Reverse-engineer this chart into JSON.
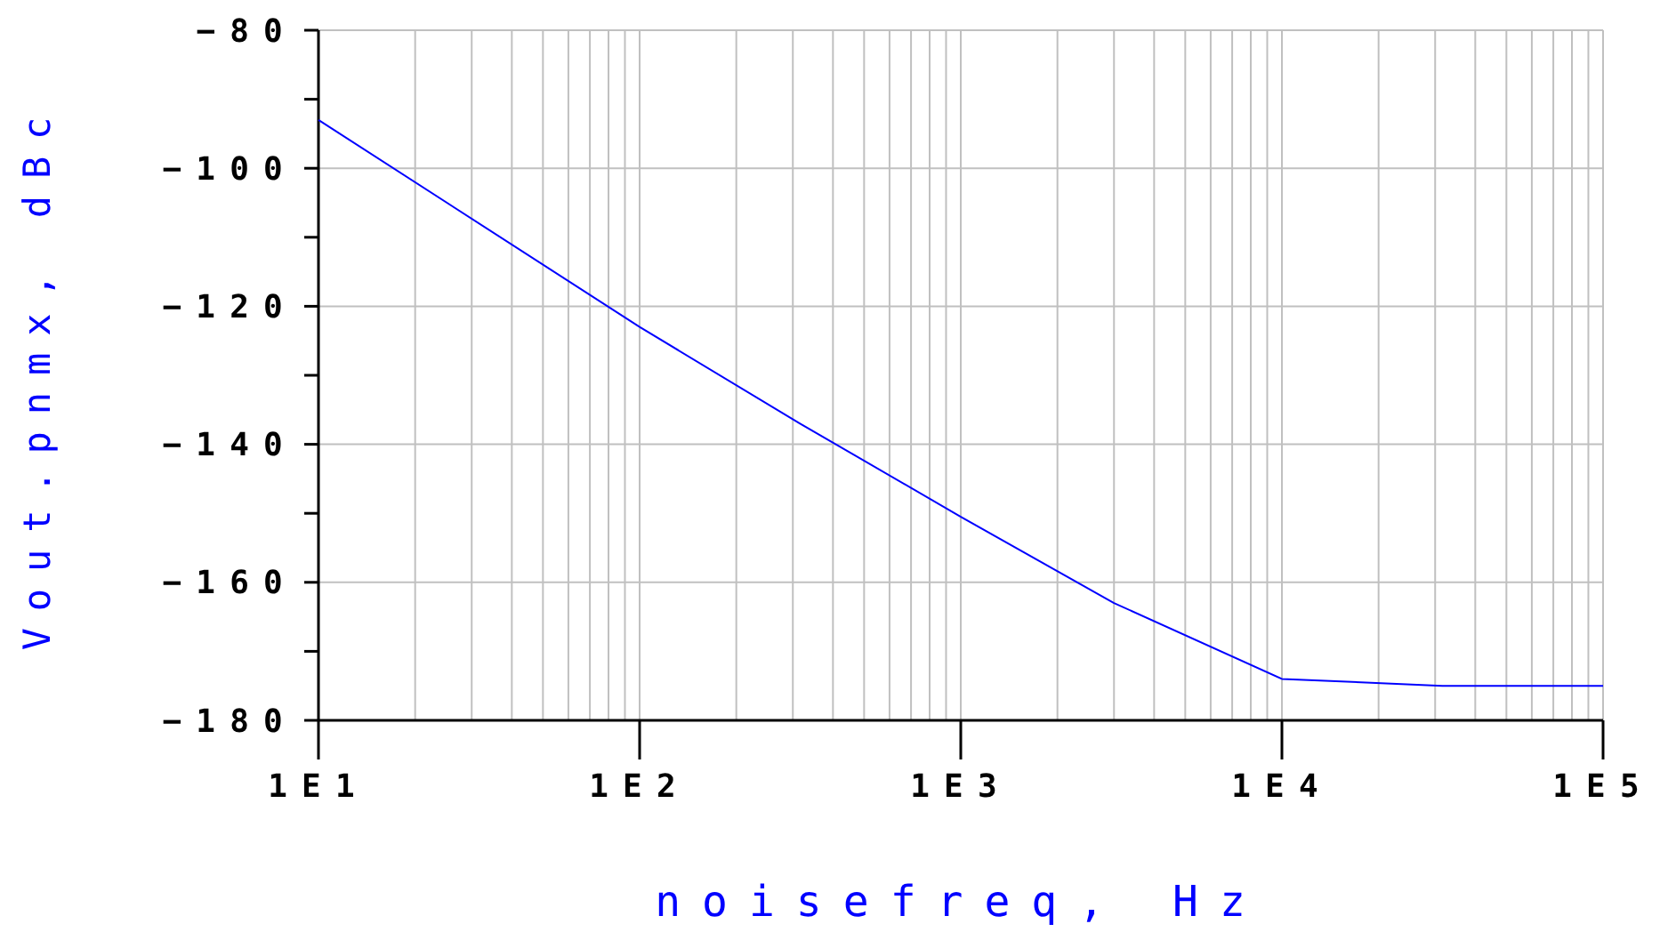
{
  "chart_data": {
    "type": "line",
    "xlabel": "noisefreq, Hz",
    "ylabel": "Vout.pnmx, dBc",
    "log": "x",
    "x": [
      10,
      100,
      316,
      1000,
      3000,
      10000,
      31600,
      100000
    ],
    "series": [
      {
        "color": "#0000ff",
        "values": [
          -93,
          -123,
          -137,
          -150.5,
          -163,
          -174,
          -175,
          -175
        ]
      }
    ],
    "xlim": [
      10,
      100000
    ],
    "xticks": [
      {
        "value": 10,
        "label": "1E1"
      },
      {
        "value": 20,
        "label": null
      },
      {
        "value": 30,
        "label": null
      },
      {
        "value": 40,
        "label": null
      },
      {
        "value": 50,
        "label": null
      },
      {
        "value": 60,
        "label": null
      },
      {
        "value": 70,
        "label": null
      },
      {
        "value": 80,
        "label": null
      },
      {
        "value": 90,
        "label": null
      },
      {
        "value": 100,
        "label": "1E2"
      },
      {
        "value": 200,
        "label": null
      },
      {
        "value": 300,
        "label": null
      },
      {
        "value": 400,
        "label": null
      },
      {
        "value": 500,
        "label": null
      },
      {
        "value": 600,
        "label": null
      },
      {
        "value": 700,
        "label": null
      },
      {
        "value": 800,
        "label": null
      },
      {
        "value": 900,
        "label": null
      },
      {
        "value": 1000,
        "label": "1E3"
      },
      {
        "value": 2000,
        "label": null
      },
      {
        "value": 3000,
        "label": null
      },
      {
        "value": 4000,
        "label": null
      },
      {
        "value": 5000,
        "label": null
      },
      {
        "value": 6000,
        "label": null
      },
      {
        "value": 7000,
        "label": null
      },
      {
        "value": 8000,
        "label": null
      },
      {
        "value": 9000,
        "label": null
      },
      {
        "value": 10000,
        "label": "1E4"
      },
      {
        "value": 20000,
        "label": null
      },
      {
        "value": 30000,
        "label": null
      },
      {
        "value": 40000,
        "label": null
      },
      {
        "value": 50000,
        "label": null
      },
      {
        "value": 60000,
        "label": null
      },
      {
        "value": 70000,
        "label": null
      },
      {
        "value": 80000,
        "label": null
      },
      {
        "value": 90000,
        "label": null
      },
      {
        "value": 100000,
        "label": "1E5"
      }
    ],
    "ylim": [
      -180,
      -80
    ],
    "yticks": [
      -180,
      {
        "value": -170,
        "label": null
      },
      -160,
      {
        "value": -150,
        "label": null
      },
      -140,
      {
        "value": -130,
        "label": null
      },
      -120,
      {
        "value": -110,
        "label": null
      },
      -100,
      {
        "value": -90,
        "label": null
      },
      -80
    ],
    "grid": true,
    "line_style": "solid",
    "marker": "none"
  }
}
